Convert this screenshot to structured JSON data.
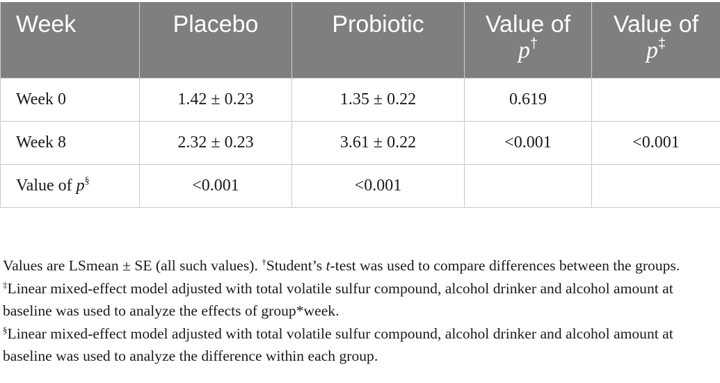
{
  "table": {
    "headers": {
      "week": "Week",
      "placebo": "Placebo",
      "probiotic": "Probiotic",
      "p1_text": "Value of",
      "p1_var": "p",
      "p1_mark": "†",
      "p2_text": "Value of",
      "p2_var": "p",
      "p2_mark": "‡"
    },
    "rows": [
      {
        "week": "Week 0",
        "placebo": "1.42 ± 0.23",
        "probiotic": "1.35 ± 0.22",
        "p1": "0.619",
        "p2": ""
      },
      {
        "week": "Week 8",
        "placebo": "2.32 ± 0.23",
        "probiotic": "3.61 ± 0.22",
        "p1": "<0.001",
        "p2": "<0.001"
      }
    ],
    "last_row": {
      "label_text": "Value of",
      "label_var": "p",
      "label_mark": "§",
      "placebo": "<0.001",
      "probiotic": "<0.001",
      "p1": "",
      "p2": ""
    }
  },
  "footnote": {
    "intro": "Values are LSmean ± SE (all such values). ",
    "dagger_mark": "†",
    "dagger_pre": "Student’s ",
    "dagger_var": "t",
    "dagger_post": "-test was used to compare differences between the groups. ",
    "ddagger_mark": "‡",
    "ddagger_text": "Linear mixed-effect model adjusted with total volatile sulfur compound, alcohol drinker and alcohol amount at baseline was used to analyze the effects of group*week. ",
    "section_mark": "§",
    "section_text": "Linear mixed-effect model adjusted with total volatile sulfur compound, alcohol drinker and alcohol amount at baseline was used to analyze the difference within each group."
  }
}
